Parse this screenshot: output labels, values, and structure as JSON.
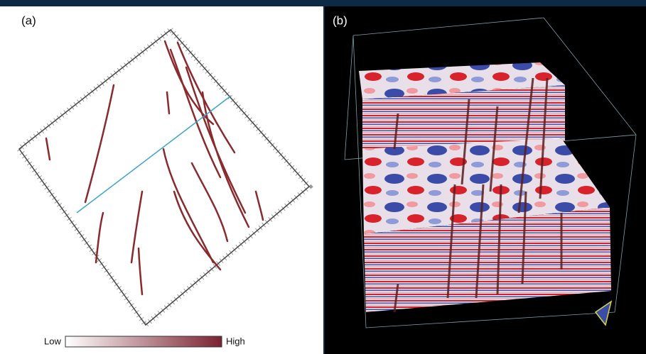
{
  "panel_a": {
    "label": "(a)",
    "colorbar": {
      "low": "Low",
      "high": "High"
    }
  },
  "panel_b": {
    "label": "(b)"
  }
}
